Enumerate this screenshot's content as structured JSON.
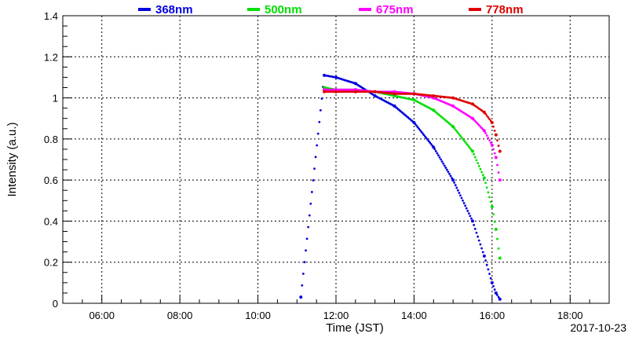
{
  "chart_data": {
    "type": "scatter",
    "title": "",
    "xlabel": "Time (JST)",
    "ylabel": "Intensity (a.u.)",
    "date_label": "2017-10-23",
    "x_unit": "hours (JST)",
    "xlim": [
      5.0,
      19.0
    ],
    "ylim": [
      0,
      1.4
    ],
    "x_ticks": [
      {
        "value": 6,
        "label": "06:00"
      },
      {
        "value": 8,
        "label": "08:00"
      },
      {
        "value": 10,
        "label": "10:00"
      },
      {
        "value": 12,
        "label": "12:00"
      },
      {
        "value": 14,
        "label": "14:00"
      },
      {
        "value": 16,
        "label": "16:00"
      },
      {
        "value": 18,
        "label": "18:00"
      }
    ],
    "y_ticks": [
      {
        "value": 0,
        "label": "0"
      },
      {
        "value": 0.2,
        "label": "0.2"
      },
      {
        "value": 0.4,
        "label": "0.4"
      },
      {
        "value": 0.6,
        "label": "0.6"
      },
      {
        "value": 0.8,
        "label": "0.8"
      },
      {
        "value": 1.0,
        "label": "1"
      },
      {
        "value": 1.2,
        "label": "1.2"
      },
      {
        "value": 1.4,
        "label": "1.4"
      }
    ],
    "grid": true,
    "legend_position": "top",
    "series": [
      {
        "name": "368nm",
        "color": "#0000e0",
        "points": [
          [
            11.1,
            0.03
          ],
          [
            11.7,
            1.11
          ],
          [
            12.0,
            1.1
          ],
          [
            12.5,
            1.07
          ],
          [
            13.0,
            1.01
          ],
          [
            13.5,
            0.96
          ],
          [
            14.0,
            0.88
          ],
          [
            14.5,
            0.76
          ],
          [
            15.0,
            0.6
          ],
          [
            15.5,
            0.4
          ],
          [
            15.8,
            0.23
          ],
          [
            16.0,
            0.1
          ],
          [
            16.1,
            0.05
          ],
          [
            16.2,
            0.02
          ]
        ]
      },
      {
        "name": "500nm",
        "color": "#00e000",
        "points": [
          [
            11.7,
            1.05
          ],
          [
            12.0,
            1.04
          ],
          [
            12.5,
            1.04
          ],
          [
            13.0,
            1.03
          ],
          [
            13.5,
            1.01
          ],
          [
            14.0,
            0.99
          ],
          [
            14.5,
            0.94
          ],
          [
            15.0,
            0.86
          ],
          [
            15.5,
            0.74
          ],
          [
            15.8,
            0.61
          ],
          [
            16.0,
            0.47
          ],
          [
            16.1,
            0.36
          ],
          [
            16.2,
            0.22
          ]
        ]
      },
      {
        "name": "675nm",
        "color": "#ff00ff",
        "points": [
          [
            11.7,
            1.04
          ],
          [
            12.0,
            1.04
          ],
          [
            12.5,
            1.04
          ],
          [
            13.0,
            1.03
          ],
          [
            13.5,
            1.03
          ],
          [
            14.0,
            1.02
          ],
          [
            14.5,
            1.0
          ],
          [
            15.0,
            0.96
          ],
          [
            15.5,
            0.9
          ],
          [
            15.8,
            0.84
          ],
          [
            16.0,
            0.77
          ],
          [
            16.1,
            0.71
          ],
          [
            16.2,
            0.6
          ]
        ]
      },
      {
        "name": "778nm",
        "color": "#e00000",
        "points": [
          [
            11.7,
            1.03
          ],
          [
            12.0,
            1.03
          ],
          [
            12.5,
            1.03
          ],
          [
            13.0,
            1.03
          ],
          [
            13.5,
            1.02
          ],
          [
            14.0,
            1.02
          ],
          [
            14.5,
            1.01
          ],
          [
            15.0,
            1.0
          ],
          [
            15.5,
            0.97
          ],
          [
            15.8,
            0.93
          ],
          [
            16.0,
            0.88
          ],
          [
            16.1,
            0.82
          ],
          [
            16.2,
            0.74
          ]
        ]
      }
    ]
  }
}
